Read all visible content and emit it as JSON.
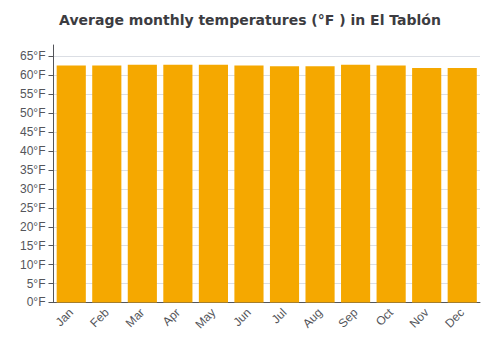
{
  "chart_data": {
    "type": "bar",
    "title": "Average monthly temperatures (°F ) in El Tablón",
    "categories": [
      "Jan",
      "Feb",
      "Mar",
      "Apr",
      "May",
      "Jun",
      "Jul",
      "Aug",
      "Sep",
      "Oct",
      "Nov",
      "Dec"
    ],
    "values": [
      62.6,
      62.6,
      62.8,
      62.8,
      62.8,
      62.6,
      62.4,
      62.4,
      62.8,
      62.6,
      61.9,
      61.9
    ],
    "color": "#F5A800",
    "ylim": [
      0,
      68
    ],
    "yticks": [
      {
        "value": 0,
        "label": "0°F"
      },
      {
        "value": 5,
        "label": "5°F"
      },
      {
        "value": 10,
        "label": "10°F"
      },
      {
        "value": 15,
        "label": "15°F"
      },
      {
        "value": 20,
        "label": "20°F"
      },
      {
        "value": 25,
        "label": "25°F"
      },
      {
        "value": 30,
        "label": "30°F"
      },
      {
        "value": 35,
        "label": "35°F"
      },
      {
        "value": 40,
        "label": "40°F"
      },
      {
        "value": 45,
        "label": "45°F"
      },
      {
        "value": 50,
        "label": "50°F"
      },
      {
        "value": 55,
        "label": "55°F"
      },
      {
        "value": 60,
        "label": "60°F"
      },
      {
        "value": 65,
        "label": "65°F"
      }
    ],
    "grid": true
  }
}
